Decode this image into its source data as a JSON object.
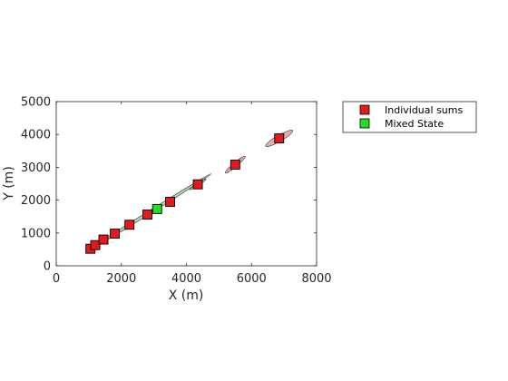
{
  "chart_data": {
    "type": "scatter",
    "title": "",
    "xlabel": "X (m)",
    "ylabel": "Y (m)",
    "xlim": [
      0,
      8000
    ],
    "ylim": [
      0,
      5000
    ],
    "xticks": [
      0,
      2000,
      4000,
      6000,
      8000
    ],
    "yticks": [
      0,
      1000,
      2000,
      3000,
      4000,
      5000
    ],
    "xtick_labels": [
      "0",
      "2000",
      "4000",
      "6000",
      "8000"
    ],
    "ytick_labels": [
      "0",
      "1000",
      "2000",
      "3000",
      "4000",
      "5000"
    ],
    "grid": false,
    "legend_position": "outside-top-right",
    "series": [
      {
        "name": "Individual sums",
        "color": "#e31a1c",
        "marker": "square",
        "points": [
          {
            "x": 1050,
            "y": 520
          },
          {
            "x": 1200,
            "y": 630
          },
          {
            "x": 1450,
            "y": 800
          },
          {
            "x": 1800,
            "y": 980
          },
          {
            "x": 2250,
            "y": 1250
          },
          {
            "x": 2800,
            "y": 1560
          },
          {
            "x": 3500,
            "y": 1950
          },
          {
            "x": 4350,
            "y": 2480
          },
          {
            "x": 5500,
            "y": 3080
          },
          {
            "x": 6850,
            "y": 3880
          }
        ]
      },
      {
        "name": "Mixed State",
        "color": "#22dd22",
        "marker": "square",
        "points": [
          {
            "x": 3100,
            "y": 1730
          }
        ]
      }
    ],
    "uncertainty_regions": [
      {
        "name": "red-ellipse",
        "color": "#cc4444",
        "cx": 5500,
        "cy": 3080,
        "rx": 400,
        "ry": 60,
        "angle_deg": 40
      },
      {
        "name": "red-ellipse",
        "color": "#cc4444",
        "cx": 6850,
        "cy": 3880,
        "rx": 480,
        "ry": 95,
        "angle_deg": 30
      },
      {
        "name": "red-ellipse",
        "color": "#cc4444",
        "cx": 4350,
        "cy": 2480,
        "rx": 300,
        "ry": 40,
        "angle_deg": 33
      },
      {
        "name": "green-ellipse",
        "color": "#55aa55",
        "cx": 2900,
        "cy": 1650,
        "rx": 2200,
        "ry": 45,
        "angle_deg": 32
      }
    ]
  }
}
